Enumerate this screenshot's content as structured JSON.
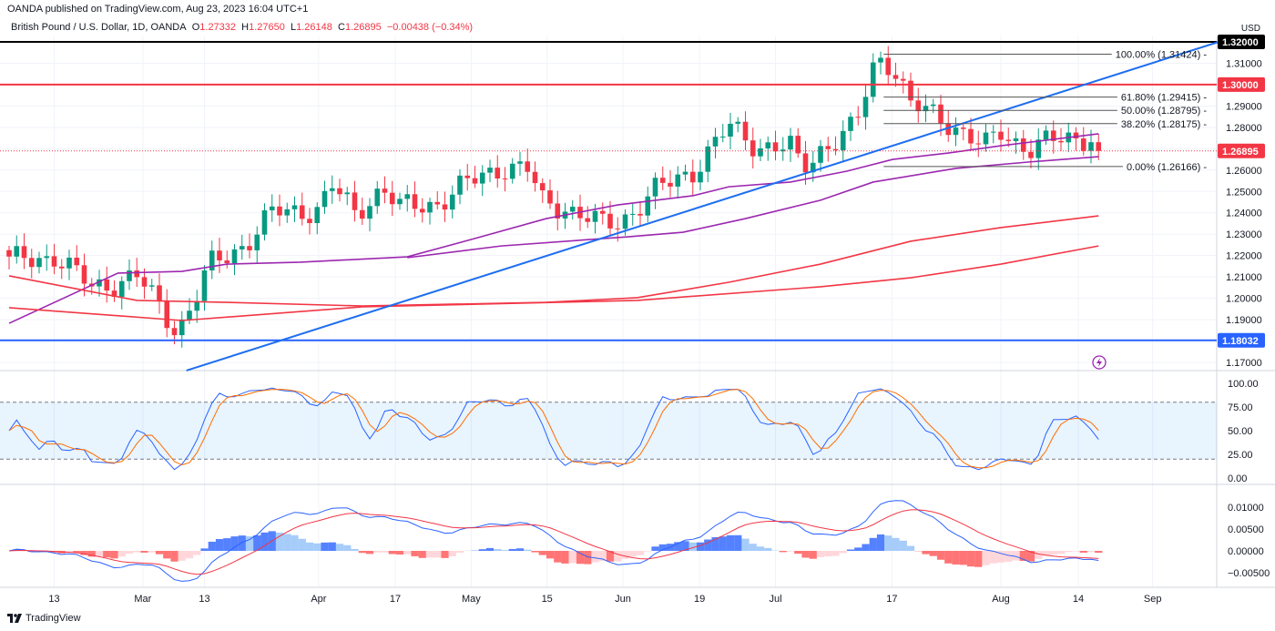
{
  "header": {
    "published": "OANDA published on TradingView.com, Aug 23, 2023 16:04 UTC+1",
    "symbol": "British Pound / U.S. Dollar, 1D, OANDA",
    "o_label": "O",
    "o": "1.27332",
    "h_label": "H",
    "h": "1.27650",
    "l_label": "L",
    "l": "1.26148",
    "c_label": "C",
    "c": "1.26895",
    "change": "−0.00438 (−0.34%)",
    "currency": "USD"
  },
  "footer": {
    "brand": "TradingView"
  },
  "colors": {
    "up": "#089981",
    "down": "#f23645",
    "purple": "#9c27b0",
    "red": "#f23645",
    "blue": "#2962ff",
    "trend": "#1e6ef0"
  },
  "chart_data": {
    "type": "candlestick",
    "title": "British Pound / U.S. Dollar, 1D, OANDA",
    "ylim": [
      1.165,
      1.322
    ],
    "price_ticks": [
      "1.31000",
      "1.29000",
      "1.28000",
      "1.26000",
      "1.25000",
      "1.24000",
      "1.23000",
      "1.22000",
      "1.21000",
      "1.20000",
      "1.19000",
      "1.17000"
    ],
    "badges": [
      {
        "label": "1.32000",
        "price": 1.32,
        "color": "#000000"
      },
      {
        "label": "1.30000",
        "price": 1.3,
        "color": "#f23645"
      },
      {
        "label": "1.26895",
        "price": 1.26895,
        "color": "#f23645"
      },
      {
        "label": "1.18032",
        "price": 1.18032,
        "color": "#2962ff"
      }
    ],
    "x_ticks": [
      {
        "label": "13",
        "day": 6
      },
      {
        "label": "Mar",
        "day": 17.8
      },
      {
        "label": "13",
        "day": 26
      },
      {
        "label": "Apr",
        "day": 41.2
      },
      {
        "label": "17",
        "day": 51.4
      },
      {
        "label": "May",
        "day": 61.5
      },
      {
        "label": "15",
        "day": 71.6
      },
      {
        "label": "Jun",
        "day": 81.7
      },
      {
        "label": "19",
        "day": 91.9
      },
      {
        "label": "Jul",
        "day": 102
      },
      {
        "label": "17",
        "day": 117.5
      },
      {
        "label": "Aug",
        "day": 132
      },
      {
        "label": "14",
        "day": 142.3
      },
      {
        "label": "Sep",
        "day": 152.2
      }
    ],
    "approx_close": [
      [
        0,
        1.217
      ],
      [
        6,
        1.22
      ],
      [
        11,
        1.205
      ],
      [
        17,
        1.21
      ],
      [
        22.4,
        1.185
      ],
      [
        24.8,
        1.2
      ],
      [
        26.7,
        1.215
      ],
      [
        31.5,
        1.226
      ],
      [
        35.2,
        1.24
      ],
      [
        41.2,
        1.242
      ],
      [
        43,
        1.252
      ],
      [
        46,
        1.24
      ],
      [
        49.7,
        1.252
      ],
      [
        52,
        1.242
      ],
      [
        57,
        1.245
      ],
      [
        61.8,
        1.255
      ],
      [
        65.5,
        1.262
      ],
      [
        69,
        1.26
      ],
      [
        71,
        1.245
      ],
      [
        74,
        1.243
      ],
      [
        78.8,
        1.234
      ],
      [
        81.2,
        1.236
      ],
      [
        86,
        1.25
      ],
      [
        91,
        1.26
      ],
      [
        95.8,
        1.28
      ],
      [
        99.4,
        1.272
      ],
      [
        104,
        1.27
      ],
      [
        105.5,
        1.26
      ],
      [
        107.9,
        1.27
      ],
      [
        112.7,
        1.28
      ],
      [
        115.4,
        1.313
      ],
      [
        117.6,
        1.31
      ],
      [
        120,
        1.29
      ],
      [
        123.6,
        1.285
      ],
      [
        125.5,
        1.282
      ],
      [
        129.7,
        1.27
      ],
      [
        132,
        1.278
      ],
      [
        135.8,
        1.27
      ],
      [
        140.6,
        1.275
      ],
      [
        144.2,
        1.276
      ],
      [
        145,
        1.26895
      ]
    ],
    "horizontal_lines": [
      {
        "price": 1.32,
        "color": "#000000"
      },
      {
        "price": 1.3,
        "color": "#f23645"
      },
      {
        "price": 1.18032,
        "color": "#2962ff"
      }
    ],
    "trendline": [
      [
        23.6,
        1.1662
      ],
      [
        161,
        1.32
      ]
    ],
    "fib": {
      "start_day": 116.4,
      "end_day": 151,
      "levels": [
        {
          "label": "100.00% (1.31424)",
          "price": 1.31424
        },
        {
          "label": "61.80% (1.29415)",
          "price": 1.29415
        },
        {
          "label": "50.00% (1.28795)",
          "price": 1.28795
        },
        {
          "label": "38.20% (1.28175)",
          "price": 1.28175
        },
        {
          "label": "0.00% (1.26166)",
          "price": 1.26166
        }
      ]
    },
    "moving_averages": [
      {
        "color": "#9c27b0",
        "points": [
          [
            0,
            1.1883
          ],
          [
            14.5,
            1.2118
          ],
          [
            23,
            1.2126
          ],
          [
            29,
            1.216
          ],
          [
            38.8,
            1.2169
          ],
          [
            53,
            1.2194
          ],
          [
            62,
            1.228
          ],
          [
            71.5,
            1.2373
          ],
          [
            81,
            1.2437
          ],
          [
            91,
            1.248
          ],
          [
            95.8,
            1.2522
          ],
          [
            104,
            1.2544
          ],
          [
            111.5,
            1.2595
          ],
          [
            117.6,
            1.265
          ],
          [
            125,
            1.268
          ],
          [
            132,
            1.2714
          ],
          [
            145,
            1.277
          ]
        ]
      },
      {
        "color": "#9c27b0",
        "points": [
          [
            53,
            1.219
          ],
          [
            65.5,
            1.2245
          ],
          [
            82.4,
            1.2288
          ],
          [
            89.7,
            1.2309
          ],
          [
            98,
            1.2373
          ],
          [
            108,
            1.2459
          ],
          [
            115,
            1.2544
          ],
          [
            126,
            1.2608
          ],
          [
            135.8,
            1.2638
          ],
          [
            145,
            1.2663
          ]
        ]
      },
      {
        "color": "#f23645",
        "points": [
          [
            0,
            1.2105
          ],
          [
            17,
            1.199
          ],
          [
            29,
            1.1981
          ],
          [
            47,
            1.1964
          ],
          [
            71.5,
            1.1981
          ],
          [
            83.6,
            1.2003
          ],
          [
            95.8,
            1.2075
          ],
          [
            108,
            1.216
          ],
          [
            120,
            1.2267
          ],
          [
            132,
            1.2331
          ],
          [
            145,
            1.2386
          ]
        ]
      },
      {
        "color": "#f23645",
        "points": [
          [
            0,
            1.1956
          ],
          [
            23,
            1.1896
          ],
          [
            47,
            1.196
          ],
          [
            83.6,
            1.199
          ],
          [
            108,
            1.2054
          ],
          [
            120,
            1.2096
          ],
          [
            132,
            1.216
          ],
          [
            145,
            1.2245
          ]
        ]
      }
    ],
    "stoch": {
      "ticks": [
        "100.00",
        "75.00",
        "50.00",
        "25.00",
        "0.00"
      ],
      "upper": 80,
      "lower": 20
    },
    "macd": {
      "ticks": [
        "0.01000",
        "0.00500",
        "0.00000",
        "−0.00500"
      ]
    }
  }
}
